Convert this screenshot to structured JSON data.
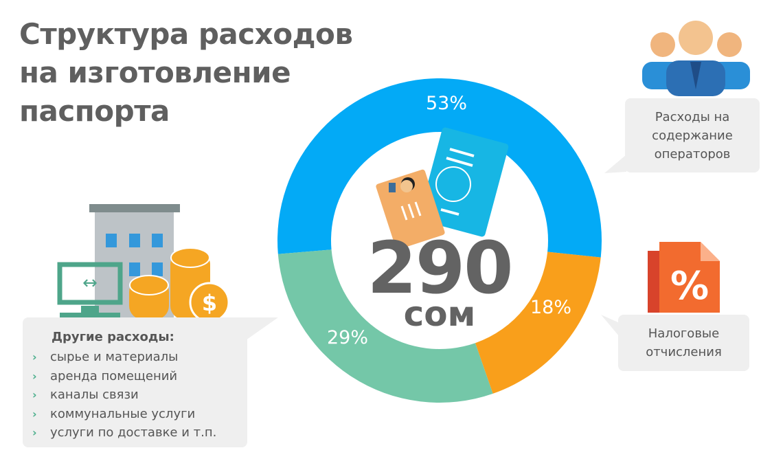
{
  "title": [
    "Структура расходов",
    "на изготовление",
    "паспорта"
  ],
  "center": {
    "value": "290",
    "unit": "сом"
  },
  "callouts": {
    "operators": [
      "Расходы на",
      "содержание",
      "операторов"
    ],
    "taxes": [
      "Налоговые",
      "отчисления"
    ],
    "other": {
      "heading": "Другие расходы:",
      "items": [
        "сырье и материалы",
        "аренда помещений",
        "каналы связи",
        "коммунальные услуги",
        "услуги по доставке и т.п."
      ]
    }
  },
  "chart_data": {
    "type": "pie",
    "variant": "donut",
    "categories": [
      "Расходы на содержание операторов",
      "Налоговые отчисления",
      "Другие расходы"
    ],
    "values": [
      53,
      18,
      29
    ],
    "labels": [
      "53%",
      "18%",
      "29%"
    ],
    "colors": [
      "#03aaf6",
      "#f99f1b",
      "#74c7a8"
    ],
    "legend": "callouts"
  }
}
